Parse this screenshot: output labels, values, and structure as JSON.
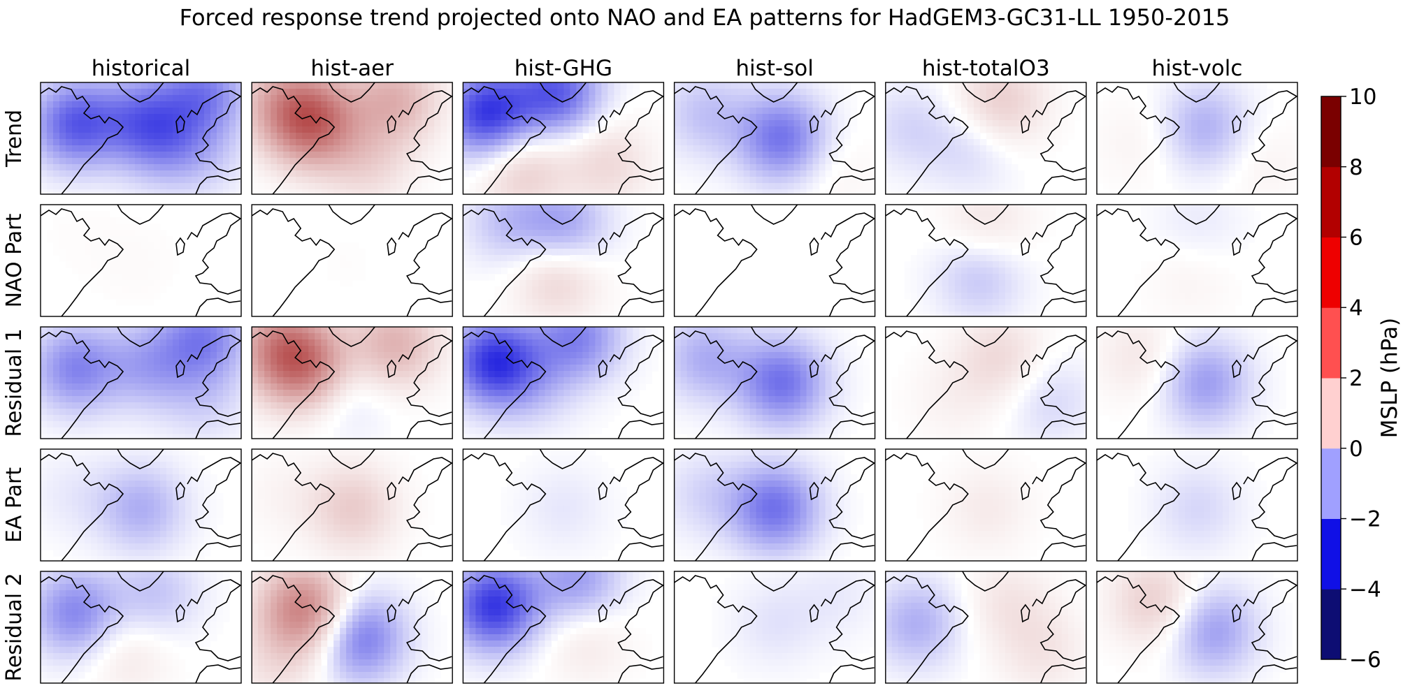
{
  "chart_data": {
    "type": "heatmap",
    "title": "Forced response trend projected onto NAO and EA patterns for HadGEM3-GC31-LL 1950-2015",
    "columns": [
      "historical",
      "hist-aer",
      "hist-GHG",
      "hist-sol",
      "hist-totalO3",
      "hist-volc"
    ],
    "rows": [
      "Trend",
      "NAO Part",
      "Residual 1",
      "EA Part",
      "Residual 2"
    ],
    "colorbar": {
      "label": "MSLP (hPa)",
      "levels": [
        -6,
        -4,
        -2,
        0,
        2,
        4,
        6,
        8,
        10
      ],
      "tick_labels": [
        "−6",
        "−4",
        "−2",
        "0",
        "2",
        "4",
        "6",
        "8",
        "10"
      ],
      "colors": [
        "#0d0d73",
        "#1010e6",
        "#a0a0ff",
        "#ffd0d0",
        "#ff5050",
        "#ee0000",
        "#b20000",
        "#7a0000"
      ]
    }
  }
}
